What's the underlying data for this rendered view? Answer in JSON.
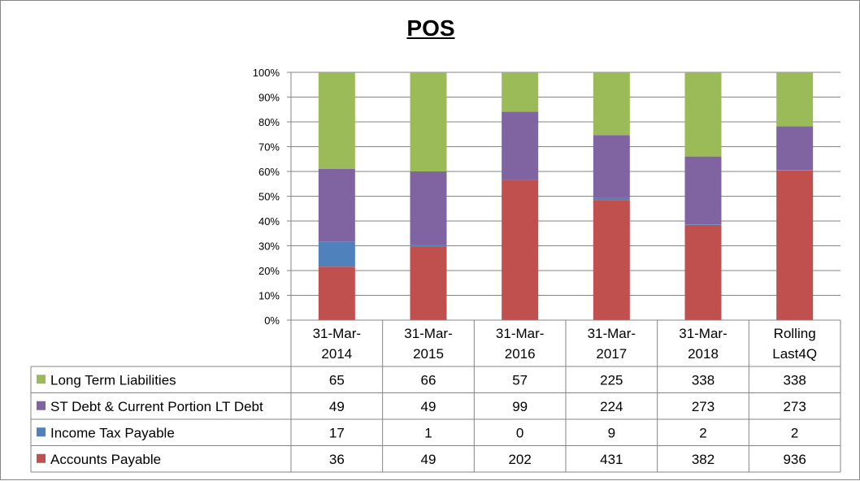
{
  "chart_data": {
    "type": "bar",
    "stacked": "percent",
    "title": "POS",
    "categories": [
      [
        "31-Mar-",
        "2014"
      ],
      [
        "31-Mar-",
        "2015"
      ],
      [
        "31-Mar-",
        "2016"
      ],
      [
        "31-Mar-",
        "2017"
      ],
      [
        "31-Mar-",
        "2018"
      ],
      [
        "Rolling",
        "Last4Q"
      ]
    ],
    "y_ticks": [
      "0%",
      "10%",
      "20%",
      "30%",
      "40%",
      "50%",
      "60%",
      "70%",
      "80%",
      "90%",
      "100%"
    ],
    "ylim": [
      0,
      100
    ],
    "grid": true,
    "legend_position": "bottom-table",
    "series": [
      {
        "name": "Accounts Payable",
        "color": "#c0504d",
        "values": [
          36,
          49,
          202,
          431,
          382,
          936
        ]
      },
      {
        "name": "Income Tax Payable",
        "color": "#4f81bd",
        "values": [
          17,
          1,
          0,
          9,
          2,
          2
        ]
      },
      {
        "name": "ST Debt & Current Portion LT Debt",
        "color": "#8064a2",
        "values": [
          49,
          49,
          99,
          224,
          273,
          273
        ]
      },
      {
        "name": "Long Term Liabilities",
        "color": "#9bbb59",
        "values": [
          65,
          66,
          57,
          225,
          338,
          338
        ]
      }
    ]
  }
}
